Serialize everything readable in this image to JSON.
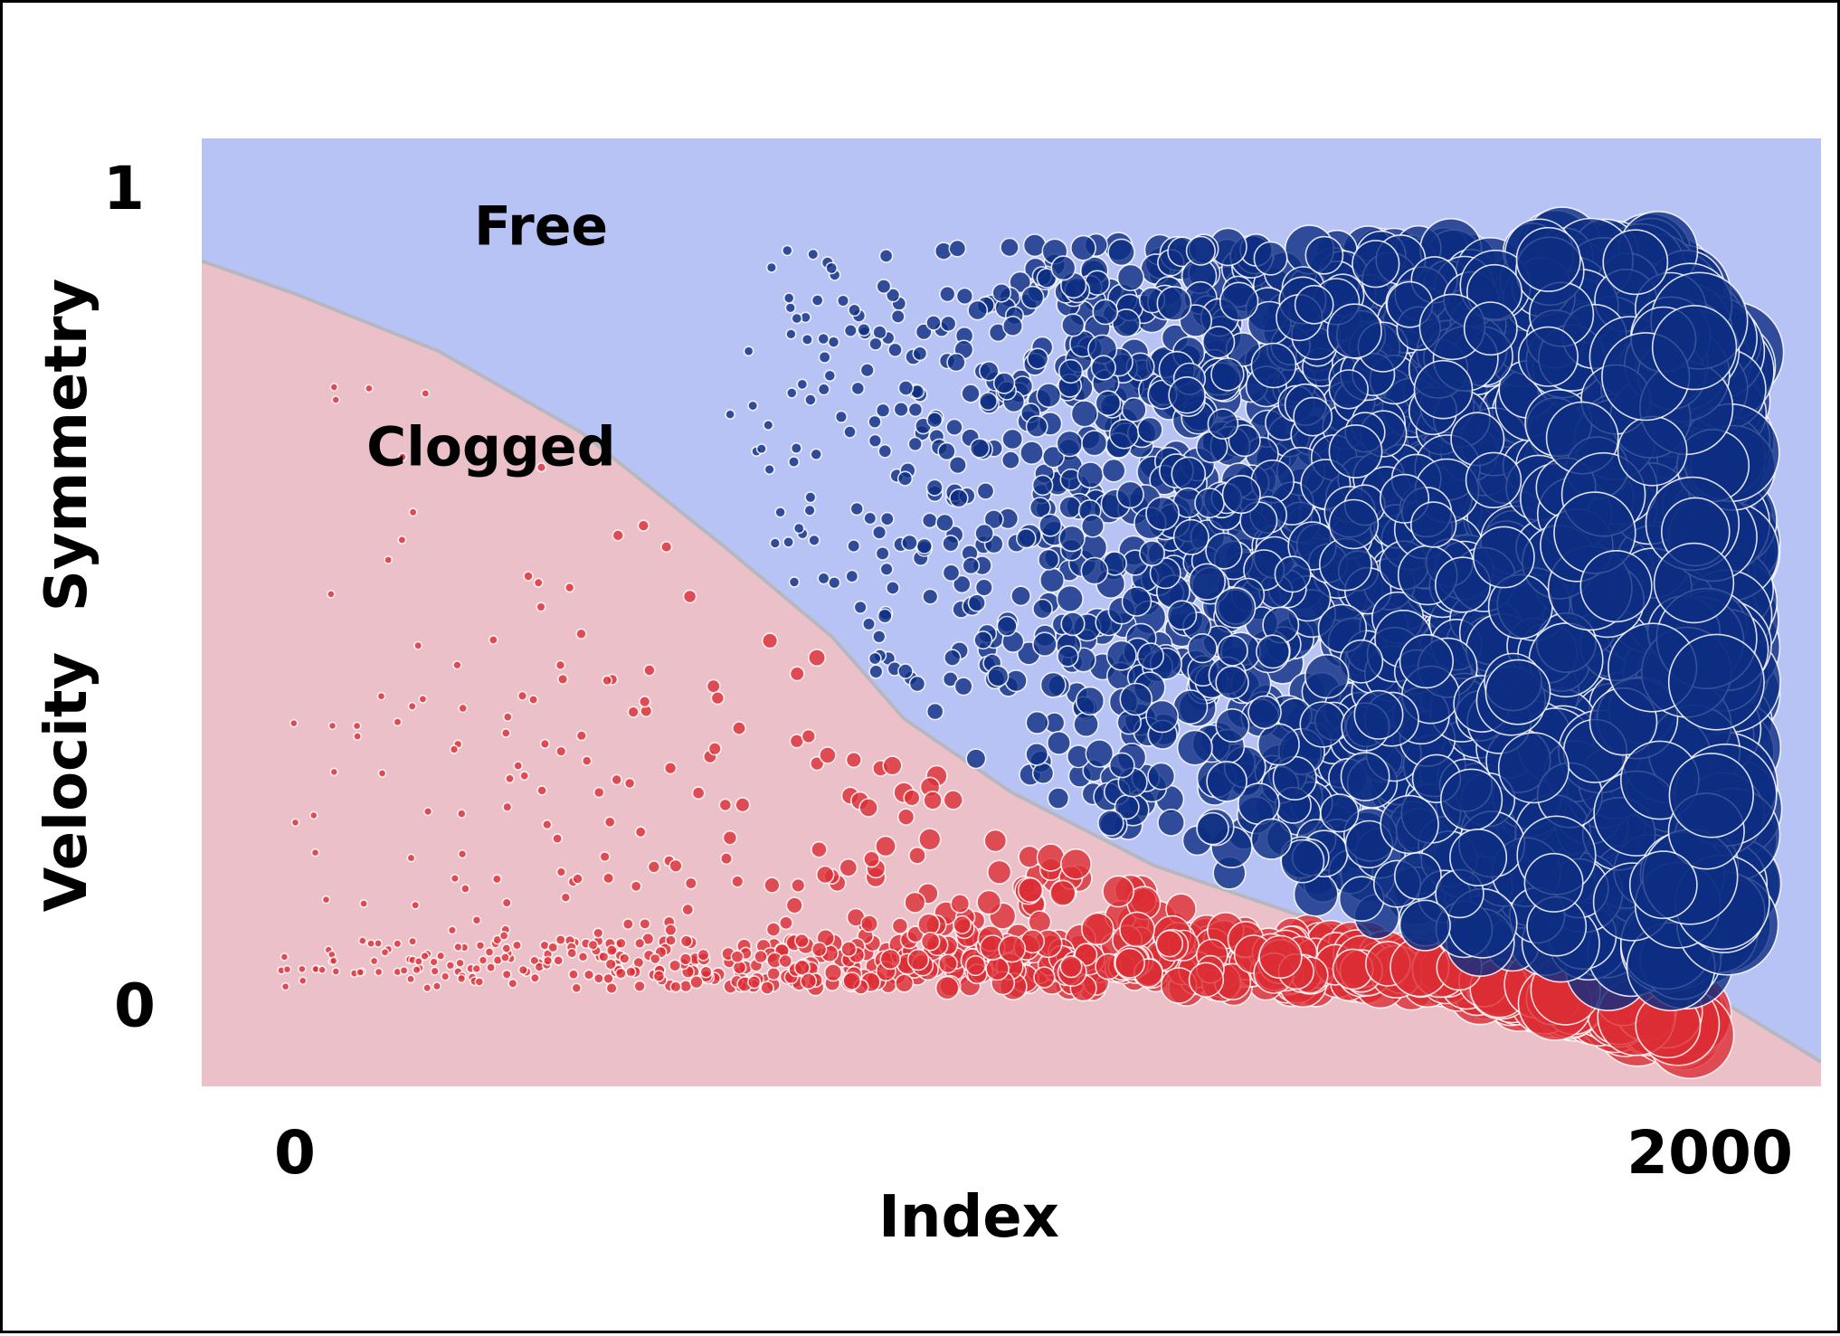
{
  "chart_data": {
    "type": "scatter",
    "xlabel": "Index",
    "ylabel": "Velocity  Symmetry",
    "xlim": [
      -130,
      2130
    ],
    "ylim": [
      -0.1,
      1.06
    ],
    "x_ticks": [
      {
        "value": 0,
        "label": "0"
      },
      {
        "value": 2000,
        "label": "2000"
      }
    ],
    "y_ticks": [
      {
        "value": 0,
        "label": "0"
      },
      {
        "value": 1,
        "label": "1"
      }
    ],
    "grid": false,
    "legend": "none",
    "regions": [
      {
        "label": "Free",
        "color": "#b8c3f5",
        "text_at": [
          250,
          0.93
        ]
      },
      {
        "label": "Clogged",
        "color": "#ecc0c9",
        "text_at": [
          100,
          0.66
        ]
      }
    ],
    "boundary": {
      "color": "#b7b7c0",
      "x": [
        -130,
        0,
        200,
        400,
        600,
        750,
        850,
        1000,
        1200,
        1400,
        1600,
        1800,
        2000,
        2130
      ],
      "y": [
        0.91,
        0.87,
        0.8,
        0.7,
        0.56,
        0.45,
        0.35,
        0.26,
        0.17,
        0.11,
        0.07,
        0.04,
        0.0,
        -0.07
      ]
    },
    "series": [
      {
        "color": "#0d2d82",
        "point_count": 2000,
        "size_range_px": [
          5,
          58
        ]
      },
      {
        "color": "#dc2d35",
        "point_count": 950,
        "size_range_px": [
          4,
          50
        ]
      }
    ]
  }
}
